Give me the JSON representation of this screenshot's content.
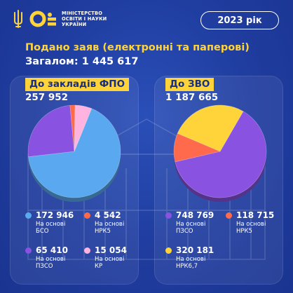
{
  "header": {
    "ministry_lines": [
      "МІНІСТЕРСТВО",
      "ОСВІТИ І НАУКИ",
      "УКРАЇНИ"
    ],
    "year": "2023 рік"
  },
  "titles": {
    "main": "Подано заяв (електронні та паперові)",
    "total": "Загалом: 1 445 617"
  },
  "colors": {
    "background": "#1f3c9e",
    "accent": "#ffd43b",
    "bso": "#5aa9f0",
    "pzso": "#8a52e0",
    "nrk5": "#ff6a4d",
    "kr": "#ffb3df",
    "nrk67": "#ffd43b"
  },
  "chart_data": [
    {
      "type": "pie",
      "title": "До закладів ФПО",
      "total": "257 952",
      "slices": [
        {
          "label": "На основі БСО",
          "value": 172946,
          "display": "172 946",
          "color": "#5aa9f0"
        },
        {
          "label": "На основі ПЗСО",
          "value": 65410,
          "display": "65 410",
          "color": "#8a52e0"
        },
        {
          "label": "На основі НРК5",
          "value": 4542,
          "display": "4 542",
          "color": "#ff6a4d"
        },
        {
          "label": "На основі КР",
          "value": 15054,
          "display": "15 054",
          "color": "#ffb3df"
        }
      ]
    },
    {
      "type": "pie",
      "title": "До ЗВО",
      "total": "1 187 665",
      "slices": [
        {
          "label": "На основі ПЗСО",
          "value": 748769,
          "display": "748 769",
          "color": "#8a52e0"
        },
        {
          "label": "На основі НРК5",
          "value": 118715,
          "display": "118 715",
          "color": "#ff6a4d"
        },
        {
          "label": "На основі НРК6,7",
          "value": 320181,
          "display": "320 181",
          "color": "#ffd43b"
        }
      ]
    }
  ]
}
